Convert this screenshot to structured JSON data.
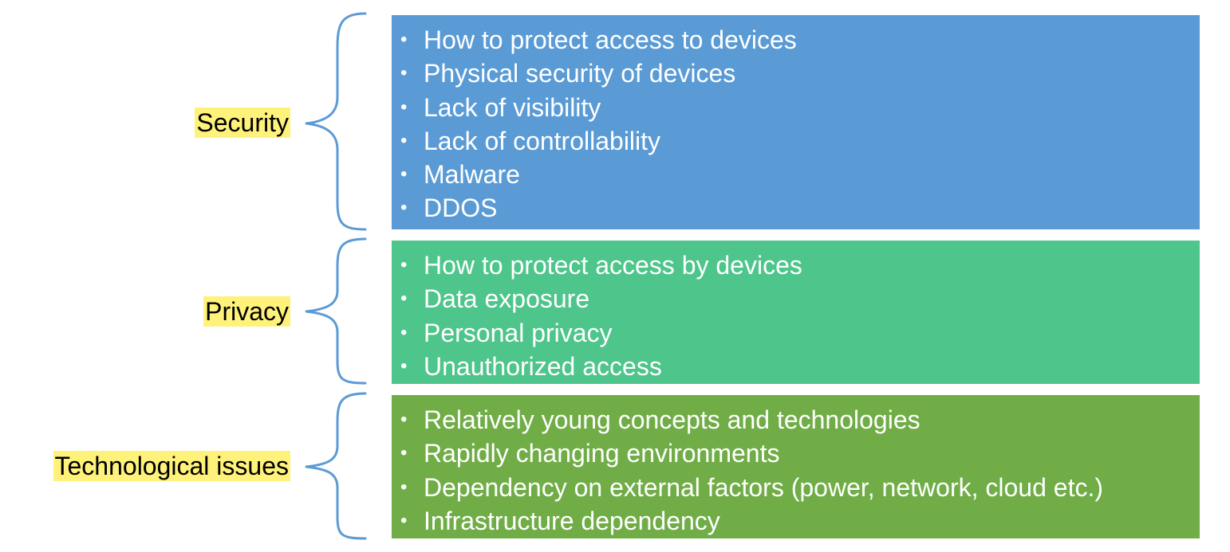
{
  "colors": {
    "security_box": "#5b9bd5",
    "privacy_box": "#4ec58b",
    "tech_box": "#70ad47",
    "brace": "#5b9bd5",
    "label_highlight": "#fff27a",
    "item_text": "#ffffff"
  },
  "groups": [
    {
      "label": "Security",
      "items": [
        "How to protect access to devices",
        "Physical security of devices",
        "Lack of visibility",
        "Lack of controllability",
        "Malware",
        "DDOS"
      ]
    },
    {
      "label": "Privacy",
      "items": [
        "How to protect access by devices",
        "Data exposure",
        "Personal privacy",
        "Unauthorized access"
      ]
    },
    {
      "label": "Technological issues",
      "items": [
        "Relatively young concepts and technologies",
        "Rapidly changing environments",
        "Dependency on external factors (power, network, cloud etc.)",
        "Infrastructure dependency"
      ]
    }
  ]
}
